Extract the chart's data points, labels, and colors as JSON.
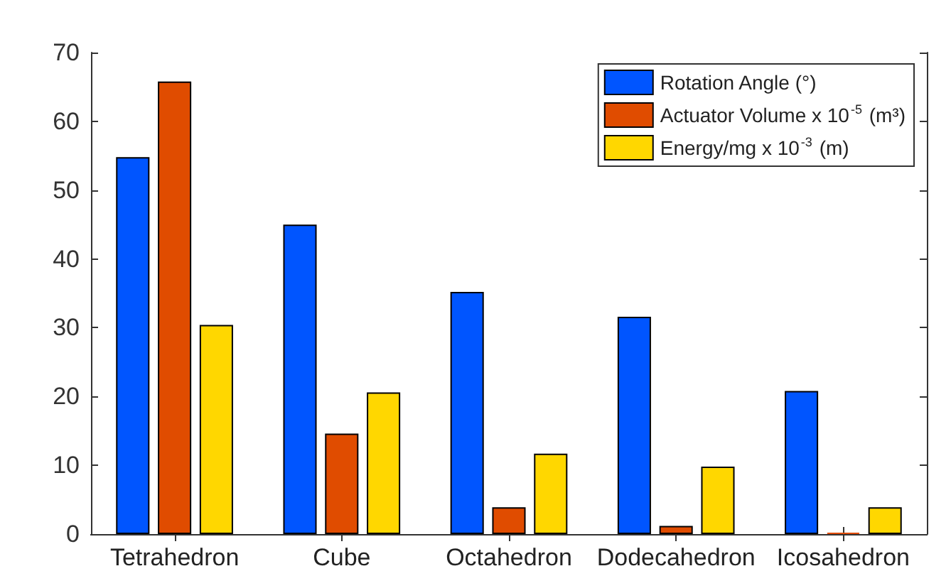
{
  "chart_data": {
    "type": "bar",
    "categories": [
      "Tetrahedron",
      "Cube",
      "Octahedron",
      "Dodecahedron",
      "Icosahedron"
    ],
    "series": [
      {
        "name": "Rotation Angle (°)",
        "color": "#0055ff",
        "values": [
          54.8,
          45,
          35.2,
          31.6,
          20.8
        ]
      },
      {
        "name": "Actuator Volume x 10$^{-5}$ (m³)",
        "color": "#e04c00",
        "values": [
          65.8,
          14.6,
          3.9,
          1.2,
          0.2
        ]
      },
      {
        "name": "Energy/mg x 10$^{-3}$ (m)",
        "color": "#ffd700",
        "values": [
          30.4,
          20.6,
          11.7,
          9.8,
          3.9
        ]
      }
    ],
    "ylim": [
      0,
      70
    ],
    "yticks": [
      0,
      10,
      20,
      30,
      40,
      50,
      60,
      70
    ],
    "grid": false,
    "legend": "top right"
  }
}
